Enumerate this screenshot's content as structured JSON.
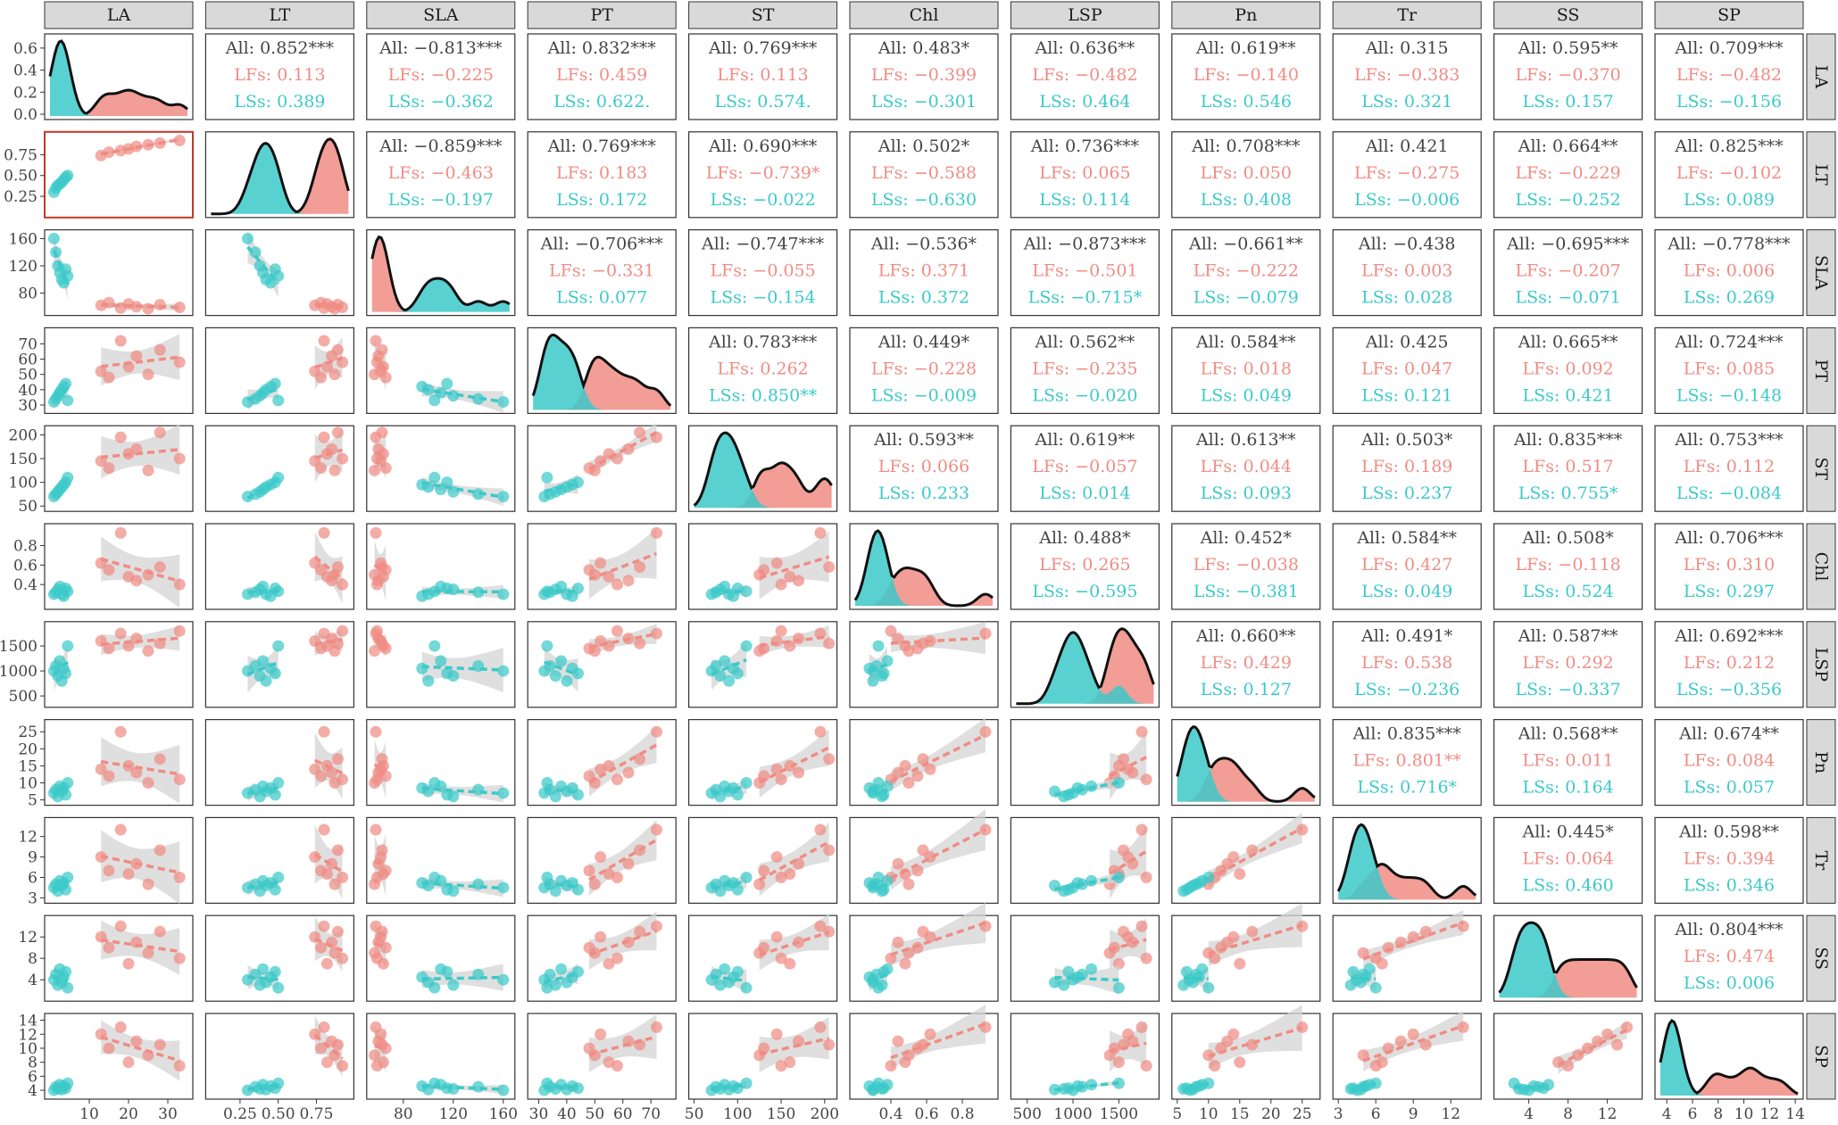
{
  "chart_data": {
    "type": "scatter",
    "variables": [
      "LA",
      "LT",
      "SLA",
      "PT",
      "ST",
      "Chl",
      "LSP",
      "Pn",
      "Tr",
      "SS",
      "SP"
    ],
    "colors": {
      "LFs": "#F08C84",
      "LSs": "#3CC9C9",
      "all": "#444444",
      "band": "#D4D4D4"
    },
    "axes": {
      "LA": {
        "range": [
          0,
          35
        ],
        "ticks": [
          "10",
          "20",
          "30"
        ],
        "y_range": [
          0,
          0.68
        ],
        "y_ticks": [
          "0.0",
          "0.2",
          "0.4",
          "0.6"
        ]
      },
      "LT": {
        "range": [
          0.06,
          0.96
        ],
        "ticks": [
          "0.25",
          "0.50",
          "0.75"
        ],
        "y_ticks": [
          "0.25",
          "0.50",
          "0.75"
        ]
      },
      "SLA": {
        "range": [
          55,
          165
        ],
        "ticks": [
          "80",
          "120",
          "160"
        ],
        "y_ticks": [
          "80",
          "120",
          "160"
        ]
      },
      "PT": {
        "range": [
          28,
          77
        ],
        "ticks": [
          "30",
          "40",
          "50",
          "60",
          "70"
        ],
        "y_ticks": [
          "30",
          "40",
          "50",
          "60",
          "70"
        ]
      },
      "ST": {
        "range": [
          50,
          208
        ],
        "ticks": [
          "50",
          "100",
          "150",
          "200"
        ],
        "y_ticks": [
          "50",
          "100",
          "150",
          "200"
        ]
      },
      "Chl": {
        "range": [
          0.2,
          0.97
        ],
        "ticks": [
          "0.4",
          "0.6",
          "0.8"
        ],
        "y_ticks": [
          "0.4",
          "0.6",
          "0.8"
        ]
      },
      "LSP": {
        "range": [
          380,
          1880
        ],
        "ticks": [
          "500",
          "1000",
          "1500"
        ],
        "y_ticks": [
          "500",
          "1000",
          "1500"
        ]
      },
      "Pn": {
        "range": [
          5,
          27
        ],
        "ticks": [
          "5",
          "10",
          "15",
          "20",
          "25"
        ],
        "y_ticks": [
          "5",
          "10",
          "15",
          "20",
          "25"
        ]
      },
      "Tr": {
        "range": [
          3,
          14
        ],
        "ticks": [
          "3",
          "6",
          "9",
          "12"
        ],
        "y_ticks": [
          "3",
          "6",
          "9",
          "12"
        ]
      },
      "SS": {
        "range": [
          1,
          15
        ],
        "ticks": [
          "4",
          "8",
          "12"
        ],
        "y_ticks": [
          "4",
          "8",
          "12"
        ]
      },
      "SP": {
        "range": [
          3.5,
          14.2
        ],
        "ticks": [
          "4",
          "6",
          "8",
          "10",
          "12",
          "14"
        ],
        "y_ticks": [
          "4",
          "6",
          "8",
          "10",
          "12",
          "14"
        ]
      }
    },
    "observations": {
      "LFs": {
        "LA": [
          13,
          15,
          18,
          20,
          22,
          25,
          28,
          33
        ],
        "LT": [
          0.74,
          0.78,
          0.8,
          0.82,
          0.85,
          0.87,
          0.89,
          0.92
        ],
        "SLA": [
          62,
          66,
          58,
          64,
          60,
          57,
          63,
          59
        ],
        "PT": [
          52,
          48,
          72,
          55,
          62,
          50,
          66,
          58
        ],
        "ST": [
          145,
          130,
          195,
          160,
          170,
          125,
          205,
          150
        ],
        "Chl": [
          0.62,
          0.55,
          0.93,
          0.48,
          0.44,
          0.5,
          0.58,
          0.4
        ],
        "LSP": [
          1600,
          1450,
          1750,
          1500,
          1650,
          1400,
          1550,
          1800
        ],
        "Pn": [
          14,
          12,
          25,
          15,
          13,
          10,
          17,
          11
        ],
        "Tr": [
          9,
          7,
          13,
          6.5,
          8,
          5,
          10,
          6
        ],
        "SS": [
          12,
          10,
          14,
          7,
          11,
          9,
          13,
          8
        ],
        "SP": [
          12,
          10,
          13,
          8,
          11,
          9,
          10.5,
          7.5
        ]
      },
      "LSs": {
        "LA": [
          1.0,
          1.5,
          2.0,
          2.5,
          3.0,
          3.5,
          4.0,
          4.5
        ],
        "LT": [
          0.3,
          0.35,
          0.38,
          0.4,
          0.42,
          0.45,
          0.48,
          0.5
        ],
        "SLA": [
          160,
          140,
          120,
          110,
          100,
          95,
          115,
          105
        ],
        "PT": [
          32,
          34,
          36,
          38,
          40,
          42,
          44,
          33
        ],
        "ST": [
          70,
          75,
          80,
          85,
          90,
          95,
          100,
          110
        ],
        "Chl": [
          0.3,
          0.32,
          0.35,
          0.38,
          0.3,
          0.28,
          0.36,
          0.33
        ],
        "LSP": [
          1000,
          1100,
          900,
          1200,
          800,
          1050,
          950,
          1500
        ],
        "Pn": [
          7,
          8,
          6,
          9,
          7.5,
          8.5,
          6.5,
          10
        ],
        "Tr": [
          4.5,
          5,
          4,
          5.5,
          4.8,
          5.2,
          4.2,
          6
        ],
        "SS": [
          4,
          5,
          3,
          6,
          3.5,
          4.5,
          5.5,
          2.5
        ],
        "SP": [
          4,
          4.5,
          4.2,
          4.8,
          4.1,
          4.6,
          4.3,
          5
        ]
      }
    },
    "correlations": {
      "LA": {
        "LT": [
          "All: 0.852***",
          "LFs: 0.113",
          "LSs: 0.389"
        ],
        "SLA": [
          "All: −0.813***",
          "LFs: −0.225",
          "LSs: −0.362"
        ],
        "PT": [
          "All: 0.832***",
          "LFs: 0.459",
          "LSs: 0.622."
        ],
        "ST": [
          "All: 0.769***",
          "LFs: 0.113",
          "LSs: 0.574."
        ],
        "Chl": [
          "All: 0.483*",
          "LFs: −0.399",
          "LSs: −0.301"
        ],
        "LSP": [
          "All: 0.636**",
          "LFs: −0.482",
          "LSs: 0.464"
        ],
        "Pn": [
          "All: 0.619**",
          "LFs: −0.140",
          "LSs: 0.546"
        ],
        "Tr": [
          "All: 0.315",
          "LFs: −0.383",
          "LSs: 0.321"
        ],
        "SS": [
          "All: 0.595**",
          "LFs: −0.370",
          "LSs: 0.157"
        ],
        "SP": [
          "All: 0.709***",
          "LFs: −0.482",
          "LSs: −0.156"
        ]
      },
      "LT": {
        "SLA": [
          "All: −0.859***",
          "LFs: −0.463",
          "LSs: −0.197"
        ],
        "PT": [
          "All: 0.769***",
          "LFs: 0.183",
          "LSs: 0.172"
        ],
        "ST": [
          "All: 0.690***",
          "LFs: −0.739*",
          "LSs: −0.022"
        ],
        "Chl": [
          "All: 0.502*",
          "LFs: −0.588",
          "LSs: −0.630"
        ],
        "LSP": [
          "All: 0.736***",
          "LFs: 0.065",
          "LSs: 0.114"
        ],
        "Pn": [
          "All: 0.708***",
          "LFs: 0.050",
          "LSs: 0.408"
        ],
        "Tr": [
          "All: 0.421",
          "LFs: −0.275",
          "LSs: −0.006"
        ],
        "SS": [
          "All: 0.664**",
          "LFs: −0.229",
          "LSs: −0.252"
        ],
        "SP": [
          "All: 0.825***",
          "LFs: −0.102",
          "LSs: 0.089"
        ]
      },
      "SLA": {
        "PT": [
          "All: −0.706***",
          "LFs: −0.331",
          "LSs: 0.077"
        ],
        "ST": [
          "All: −0.747***",
          "LFs: −0.055",
          "LSs: −0.154"
        ],
        "Chl": [
          "All: −0.536*",
          "LFs: 0.371",
          "LSs: 0.372"
        ],
        "LSP": [
          "All: −0.873***",
          "LFs: −0.501",
          "LSs: −0.715*"
        ],
        "Pn": [
          "All: −0.661**",
          "LFs: −0.222",
          "LSs: −0.079"
        ],
        "Tr": [
          "All: −0.438",
          "LFs: 0.003",
          "LSs: 0.028"
        ],
        "SS": [
          "All: −0.695***",
          "LFs: −0.207",
          "LSs: −0.071"
        ],
        "SP": [
          "All: −0.778***",
          "LFs: 0.006",
          "LSs: 0.269"
        ]
      },
      "PT": {
        "ST": [
          "All: 0.783***",
          "LFs: 0.262",
          "LSs: 0.850**"
        ],
        "Chl": [
          "All: 0.449*",
          "LFs: −0.228",
          "LSs: −0.009"
        ],
        "LSP": [
          "All: 0.562**",
          "LFs: −0.235",
          "LSs: −0.020"
        ],
        "Pn": [
          "All: 0.584**",
          "LFs: 0.018",
          "LSs: 0.049"
        ],
        "Tr": [
          "All: 0.425",
          "LFs: 0.047",
          "LSs: 0.121"
        ],
        "SS": [
          "All: 0.665**",
          "LFs: 0.092",
          "LSs: 0.421"
        ],
        "SP": [
          "All: 0.724***",
          "LFs: 0.085",
          "LSs: −0.148"
        ]
      },
      "ST": {
        "Chl": [
          "All: 0.593**",
          "LFs: 0.066",
          "LSs: 0.233"
        ],
        "LSP": [
          "All: 0.619**",
          "LFs: −0.057",
          "LSs: 0.014"
        ],
        "Pn": [
          "All: 0.613**",
          "LFs: 0.044",
          "LSs: 0.093"
        ],
        "Tr": [
          "All: 0.503*",
          "LFs: 0.189",
          "LSs: 0.237"
        ],
        "SS": [
          "All: 0.835***",
          "LFs: 0.517",
          "LSs: 0.755*"
        ],
        "SP": [
          "All: 0.753***",
          "LFs: 0.112",
          "LSs: −0.084"
        ]
      },
      "Chl": {
        "LSP": [
          "All: 0.488*",
          "LFs: 0.265",
          "LSs: −0.595"
        ],
        "Pn": [
          "All: 0.452*",
          "LFs: −0.038",
          "LSs: −0.381"
        ],
        "Tr": [
          "All: 0.584**",
          "LFs: 0.427",
          "LSs: 0.049"
        ],
        "SS": [
          "All: 0.508*",
          "LFs: −0.118",
          "LSs: 0.524"
        ],
        "SP": [
          "All: 0.706***",
          "LFs: 0.310",
          "LSs: 0.297"
        ]
      },
      "LSP": {
        "Pn": [
          "All: 0.660**",
          "LFs: 0.429",
          "LSs: 0.127"
        ],
        "Tr": [
          "All: 0.491*",
          "LFs: 0.538",
          "LSs: −0.236"
        ],
        "SS": [
          "All: 0.587**",
          "LFs: 0.292",
          "LSs: −0.337"
        ],
        "SP": [
          "All: 0.692***",
          "LFs: 0.212",
          "LSs: −0.356"
        ]
      },
      "Pn": {
        "Tr": [
          "All: 0.835***",
          "LFs: 0.801**",
          "LSs: 0.716*"
        ],
        "SS": [
          "All: 0.568**",
          "LFs: 0.011",
          "LSs: 0.164"
        ],
        "SP": [
          "All: 0.674**",
          "LFs: 0.084",
          "LSs: 0.057"
        ]
      },
      "Tr": {
        "SS": [
          "All: 0.445*",
          "LFs: 0.064",
          "LSs: 0.460"
        ],
        "SP": [
          "All: 0.598**",
          "LFs: 0.394",
          "LSs: 0.346"
        ]
      },
      "SS": {
        "SP": [
          "All: 0.804***",
          "LFs: 0.474",
          "LSs: 0.006"
        ]
      }
    },
    "significant_fits": [
      [
        "LT",
        "ST",
        "LFs"
      ],
      [
        "PT",
        "ST",
        "LSs"
      ],
      [
        "SLA",
        "LSP",
        "LSs"
      ],
      [
        "Pn",
        "Tr",
        "LFs"
      ]
    ],
    "highlighted_panel": [
      "LA",
      "LT"
    ],
    "grid": false
  }
}
